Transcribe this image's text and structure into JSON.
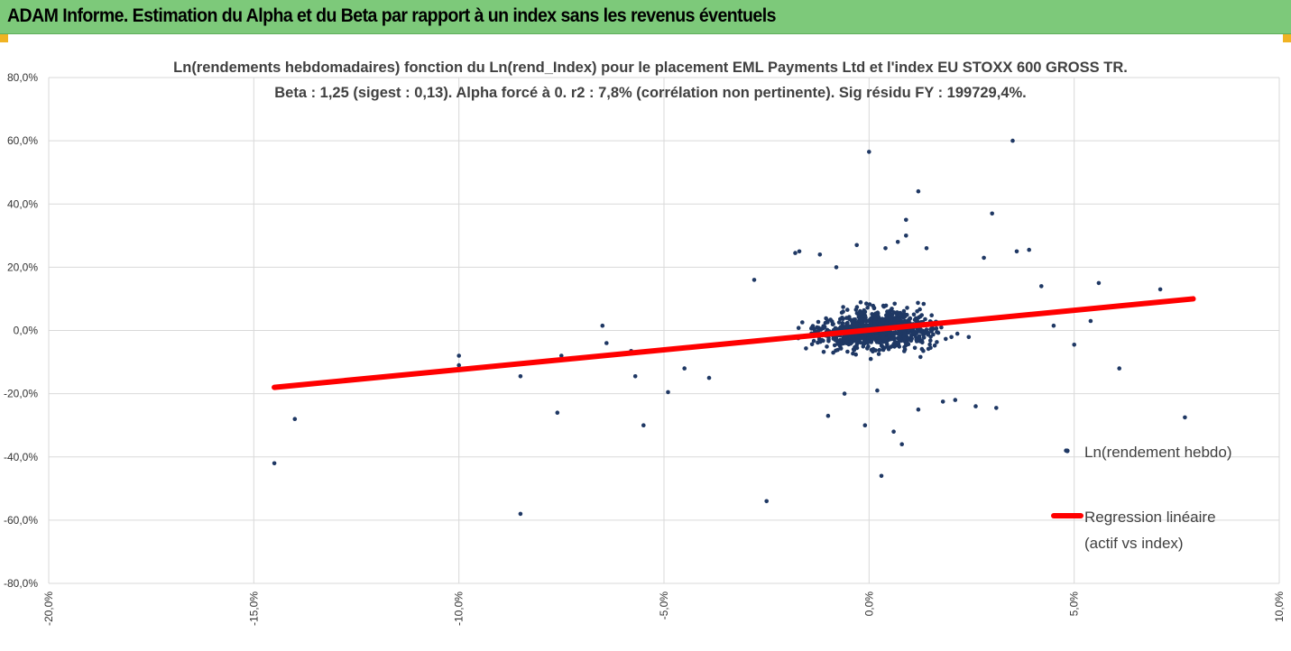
{
  "header": {
    "title": "ADAM Informe. Estimation du Alpha et du Beta par rapport à un index sans les revenus éventuels"
  },
  "colors": {
    "header_bg": "#7dc97a",
    "corner_accent": "#f0b323",
    "points": "#1f3864",
    "regression": "#ff0000",
    "grid": "#d9d9d9"
  },
  "chart_data": {
    "type": "scatter",
    "title": "Ln(rendements hebdomadaires) fonction du Ln(rend_Index) pour le placement EML Payments Ltd et l'index EU STOXX 600 GROSS TR.",
    "subtitle": "Beta : 1,25 (sigest : 0,13). Alpha forcé à 0. r2 : 7,8% (corrélation non pertinente). Sig résidu FY : 199729,4%.",
    "xlim": [
      -0.2,
      0.1
    ],
    "ylim": [
      -0.8,
      0.8
    ],
    "x_ticks": [
      "-20,0%",
      "-15,0%",
      "-10,0%",
      "-5,0%",
      "0,0%",
      "5,0%",
      "10,0%"
    ],
    "y_ticks": [
      "80,0%",
      "60,0%",
      "40,0%",
      "20,0%",
      "0,0%",
      "-20,0%",
      "-40,0%",
      "-60,0%",
      "-80,0%"
    ],
    "grid": true,
    "legend_placement": "right",
    "series": [
      {
        "name": "Ln(rendement hebdo)",
        "kind": "scatter",
        "points": [
          [
            -0.145,
            -0.42
          ],
          [
            -0.14,
            -0.28
          ],
          [
            -0.085,
            -0.58
          ],
          [
            -0.085,
            -0.145
          ],
          [
            -0.1,
            -0.08
          ],
          [
            -0.1,
            -0.11
          ],
          [
            -0.076,
            -0.26
          ],
          [
            -0.075,
            -0.08
          ],
          [
            -0.065,
            0.015
          ],
          [
            -0.064,
            -0.04
          ],
          [
            -0.055,
            -0.3
          ],
          [
            -0.049,
            -0.195
          ],
          [
            -0.025,
            -0.54
          ],
          [
            -0.01,
            -0.27
          ],
          [
            0.0,
            0.565
          ],
          [
            0.003,
            -0.46
          ],
          [
            0.008,
            -0.36
          ],
          [
            0.012,
            0.44
          ],
          [
            0.03,
            0.37
          ],
          [
            0.035,
            0.6
          ],
          [
            0.031,
            -0.245
          ],
          [
            0.048,
            -0.38
          ],
          [
            0.061,
            -0.12
          ],
          [
            0.077,
            -0.275
          ],
          [
            0.056,
            0.15
          ],
          [
            0.071,
            0.13
          ],
          [
            -0.017,
            0.25
          ],
          [
            -0.018,
            0.245
          ],
          [
            0.009,
            0.35
          ],
          [
            0.036,
            0.25
          ],
          [
            0.039,
            0.255
          ],
          [
            0.028,
            0.23
          ],
          [
            -0.028,
            0.16
          ],
          [
            -0.012,
            0.24
          ],
          [
            -0.008,
            0.2
          ],
          [
            -0.003,
            0.27
          ],
          [
            0.004,
            0.26
          ],
          [
            0.007,
            0.28
          ],
          [
            0.009,
            0.3
          ],
          [
            0.014,
            0.26
          ],
          [
            -0.006,
            -0.2
          ],
          [
            0.002,
            -0.19
          ],
          [
            0.006,
            -0.32
          ],
          [
            0.012,
            -0.25
          ],
          [
            -0.001,
            -0.3
          ],
          [
            0.026,
            -0.24
          ],
          [
            0.021,
            -0.22
          ],
          [
            0.018,
            -0.225
          ],
          [
            0.042,
            0.14
          ],
          [
            0.045,
            0.015
          ],
          [
            0.05,
            -0.045
          ],
          [
            0.054,
            0.03
          ],
          [
            -0.039,
            -0.15
          ],
          [
            -0.045,
            -0.12
          ],
          [
            -0.057,
            -0.145
          ],
          [
            -0.058,
            -0.065
          ]
        ]
      },
      {
        "name": "Regression linéaire",
        "name_line2": "(actif vs index)",
        "kind": "line",
        "points": [
          [
            -0.145,
            -0.18
          ],
          [
            0.079,
            0.1
          ]
        ]
      }
    ]
  }
}
